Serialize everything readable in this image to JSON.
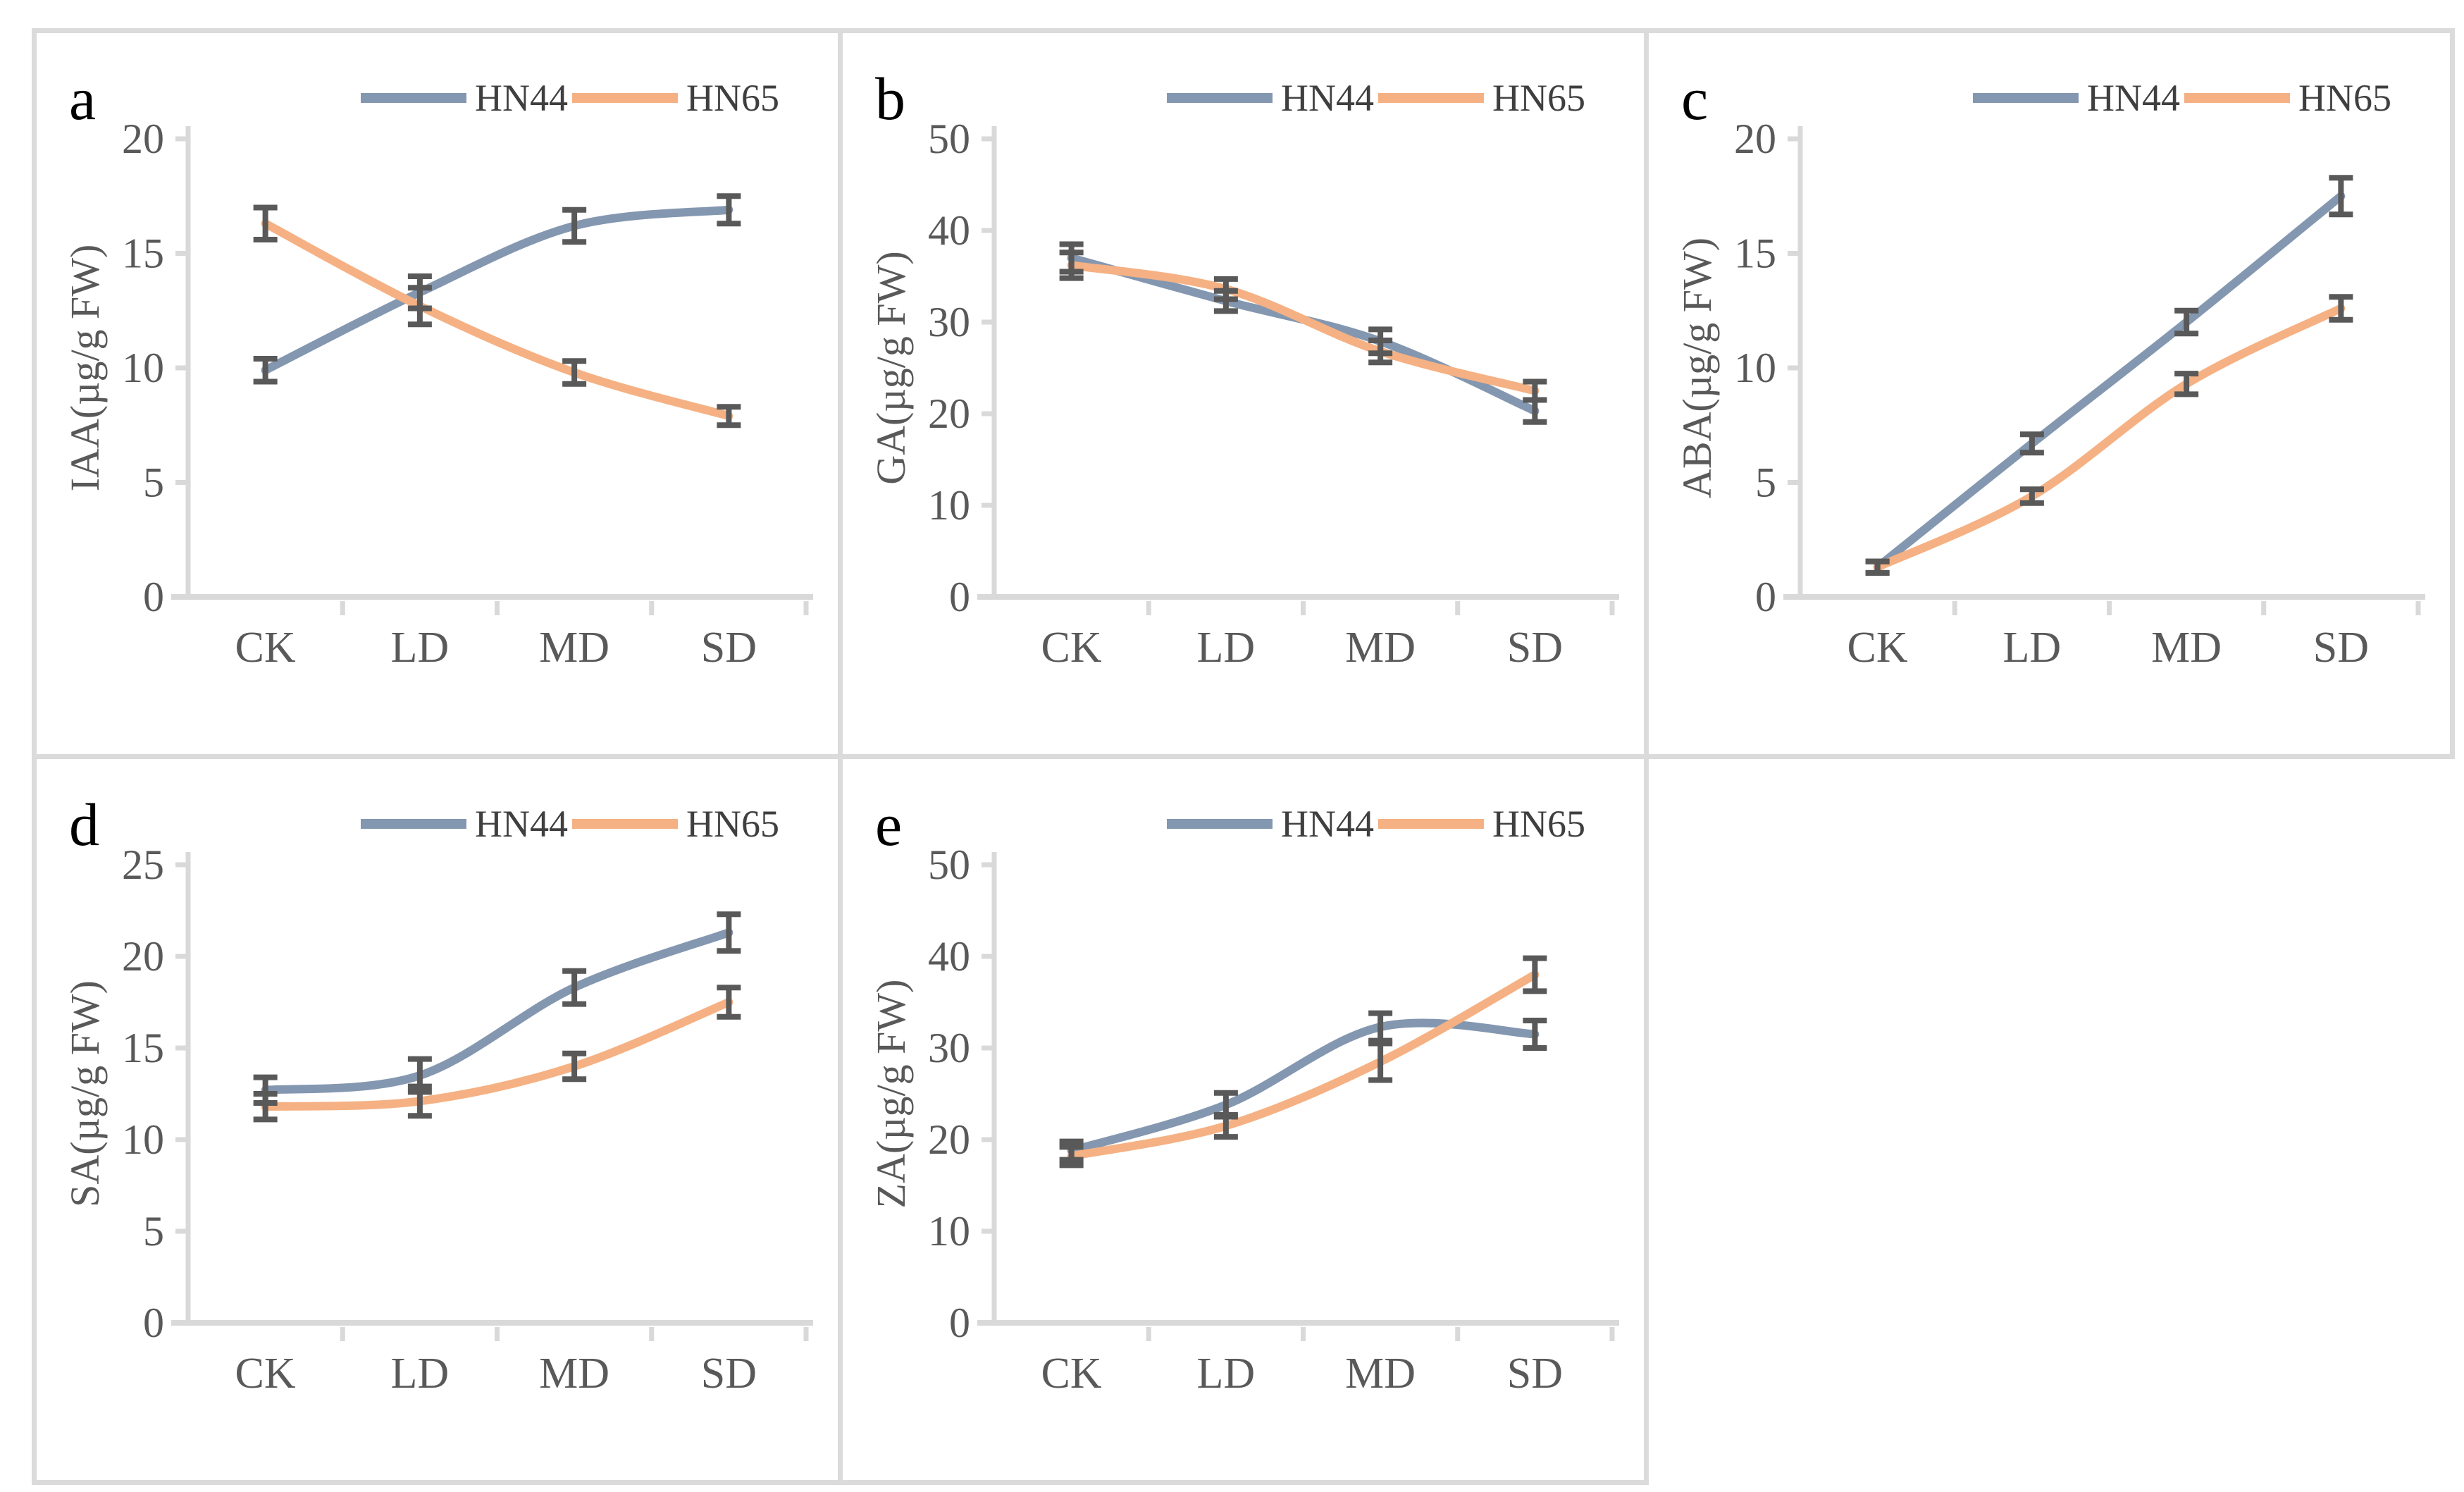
{
  "figure": {
    "background": "#ffffff",
    "border_color": "#DBDBDB",
    "grid": {
      "rows": 2,
      "cols": 3,
      "empty_cells": [
        "row2-col3"
      ]
    }
  },
  "style": {
    "axis_color": "#D9D9D9",
    "tick_label_color": "#595959",
    "error_bar_color": "#595959",
    "legend_text_color": "#3F3F3F",
    "panel_letter_color": "#000000",
    "line_width": 12,
    "error_bar_width": 8
  },
  "legend": {
    "position": "top-right-inline",
    "items": [
      {
        "label": "HN44",
        "color": "#8497B0"
      },
      {
        "label": "HN65",
        "color": "#F5B183"
      }
    ]
  },
  "chart_data": [
    {
      "id": "a",
      "panel_label": "a",
      "type": "line",
      "title": "",
      "xlabel": "",
      "ylabel": "IAA(µg/g FW)",
      "ylim": [
        0,
        20
      ],
      "yticks": [
        0,
        5,
        10,
        15,
        20
      ],
      "categories": [
        "CK",
        "LD",
        "MD",
        "SD"
      ],
      "grid": false,
      "error_bars": true,
      "smooth": true,
      "series": [
        {
          "name": "HN44",
          "color": "#8497B0",
          "values": [
            9.9,
            13.3,
            16.2,
            16.9
          ],
          "errors": [
            0.5,
            0.7,
            0.7,
            0.6
          ]
        },
        {
          "name": "HN65",
          "color": "#F5B183",
          "values": [
            16.3,
            12.7,
            9.8,
            7.9
          ],
          "errors": [
            0.7,
            0.8,
            0.5,
            0.4
          ]
        }
      ]
    },
    {
      "id": "b",
      "panel_label": "b",
      "type": "line",
      "title": "",
      "xlabel": "",
      "ylabel": "GA(µg/g FW)",
      "ylim": [
        0,
        50
      ],
      "yticks": [
        0,
        10,
        20,
        30,
        40,
        50
      ],
      "categories": [
        "CK",
        "LD",
        "MD",
        "SD"
      ],
      "grid": false,
      "error_bars": true,
      "smooth": true,
      "series": [
        {
          "name": "HN44",
          "color": "#8497B0",
          "values": [
            37.0,
            32.3,
            27.9,
            20.3
          ],
          "errors": [
            1.5,
            1.1,
            1.3,
            1.2
          ]
        },
        {
          "name": "HN65",
          "color": "#F5B183",
          "values": [
            36.2,
            33.6,
            26.8,
            22.5
          ],
          "errors": [
            1.4,
            1.1,
            1.2,
            1.0
          ]
        }
      ]
    },
    {
      "id": "c",
      "panel_label": "c",
      "type": "line",
      "title": "",
      "xlabel": "",
      "ylabel": "ABA(µg/g FW)",
      "ylim": [
        0,
        20
      ],
      "yticks": [
        0,
        5,
        10,
        15,
        20
      ],
      "categories": [
        "CK",
        "LD",
        "MD",
        "SD"
      ],
      "grid": false,
      "error_bars": true,
      "smooth": true,
      "series": [
        {
          "name": "HN44",
          "color": "#8497B0",
          "values": [
            1.3,
            6.7,
            12.0,
            17.5
          ],
          "errors": [
            0.25,
            0.4,
            0.5,
            0.8
          ]
        },
        {
          "name": "HN65",
          "color": "#F5B183",
          "values": [
            1.3,
            4.4,
            9.3,
            12.6
          ],
          "errors": [
            0.25,
            0.3,
            0.45,
            0.5
          ]
        }
      ]
    },
    {
      "id": "d",
      "panel_label": "d",
      "type": "line",
      "title": "",
      "xlabel": "",
      "ylabel": "SA(µg/g FW)",
      "ylim": [
        0,
        25
      ],
      "yticks": [
        0,
        5,
        10,
        15,
        20,
        25
      ],
      "categories": [
        "CK",
        "LD",
        "MD",
        "SD"
      ],
      "grid": false,
      "error_bars": true,
      "smooth": true,
      "series": [
        {
          "name": "HN44",
          "color": "#8497B0",
          "values": [
            12.7,
            13.5,
            18.3,
            21.3
          ],
          "errors": [
            0.7,
            0.9,
            0.9,
            1.0
          ]
        },
        {
          "name": "HN65",
          "color": "#F5B183",
          "values": [
            11.8,
            12.1,
            14.0,
            17.5
          ],
          "errors": [
            0.7,
            0.8,
            0.7,
            0.8
          ]
        }
      ]
    },
    {
      "id": "e",
      "panel_label": "e",
      "type": "line",
      "title": "",
      "xlabel": "",
      "ylabel": "ZA(µg/g FW)",
      "ylim": [
        0,
        50
      ],
      "yticks": [
        0,
        10,
        20,
        30,
        40,
        50
      ],
      "categories": [
        "CK",
        "LD",
        "MD",
        "SD"
      ],
      "grid": false,
      "error_bars": true,
      "smooth": true,
      "series": [
        {
          "name": "HN44",
          "color": "#8497B0",
          "values": [
            18.8,
            23.8,
            32.3,
            31.5
          ],
          "errors": [
            1.0,
            1.3,
            1.5,
            1.5
          ]
        },
        {
          "name": "HN65",
          "color": "#F5B183",
          "values": [
            18.2,
            21.5,
            28.5,
            38.0
          ],
          "errors": [
            1.0,
            1.2,
            2.0,
            1.8
          ]
        }
      ]
    }
  ]
}
